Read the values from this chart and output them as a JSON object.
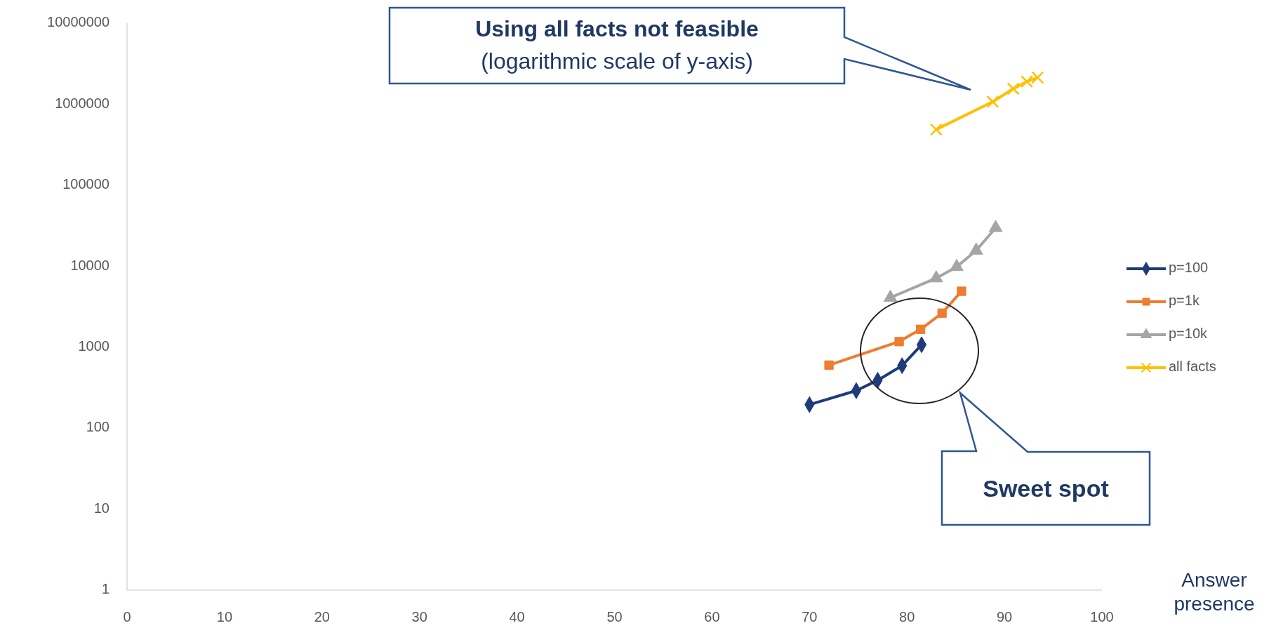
{
  "chart_data": {
    "type": "line",
    "xlabel": "Answer presence",
    "log": "y",
    "xlim": [
      0,
      100
    ],
    "xticks": [
      0,
      10,
      20,
      30,
      40,
      50,
      60,
      70,
      80,
      90,
      100
    ],
    "ylim": [
      1,
      10000000
    ],
    "yticks": [
      1,
      10,
      100,
      1000,
      10000,
      100000,
      1000000,
      10000000
    ],
    "grid": false,
    "legend": "right",
    "series": [
      {
        "name": "p=100",
        "color": "#1f3b7a",
        "marker": "diamond",
        "x": [
          70,
          74.8,
          77,
          79.5,
          81.5
        ],
        "values": [
          195,
          290,
          390,
          590,
          1070
        ]
      },
      {
        "name": "p=1k",
        "color": "#ed7d31",
        "marker": "square",
        "x": [
          72,
          79.2,
          81.4,
          83.6,
          85.6
        ],
        "values": [
          600,
          1170,
          1660,
          2630,
          4900
        ]
      },
      {
        "name": "p=10k",
        "color": "#a5a5a5",
        "marker": "triangle",
        "x": [
          78.3,
          83,
          85.1,
          87.1,
          89.1
        ],
        "values": [
          4080,
          7100,
          9800,
          15600,
          29700
        ]
      },
      {
        "name": "all facts",
        "color": "#ffc000",
        "marker": "cross",
        "x": [
          83,
          88.8,
          90.9,
          92.3,
          93.4
        ],
        "values": [
          486000,
          1070000,
          1550000,
          1900000,
          2130000
        ]
      }
    ],
    "annotations": [
      "Using all facts not feasible",
      "(logarithmic scale of y-axis)",
      "Sweet spot"
    ]
  }
}
